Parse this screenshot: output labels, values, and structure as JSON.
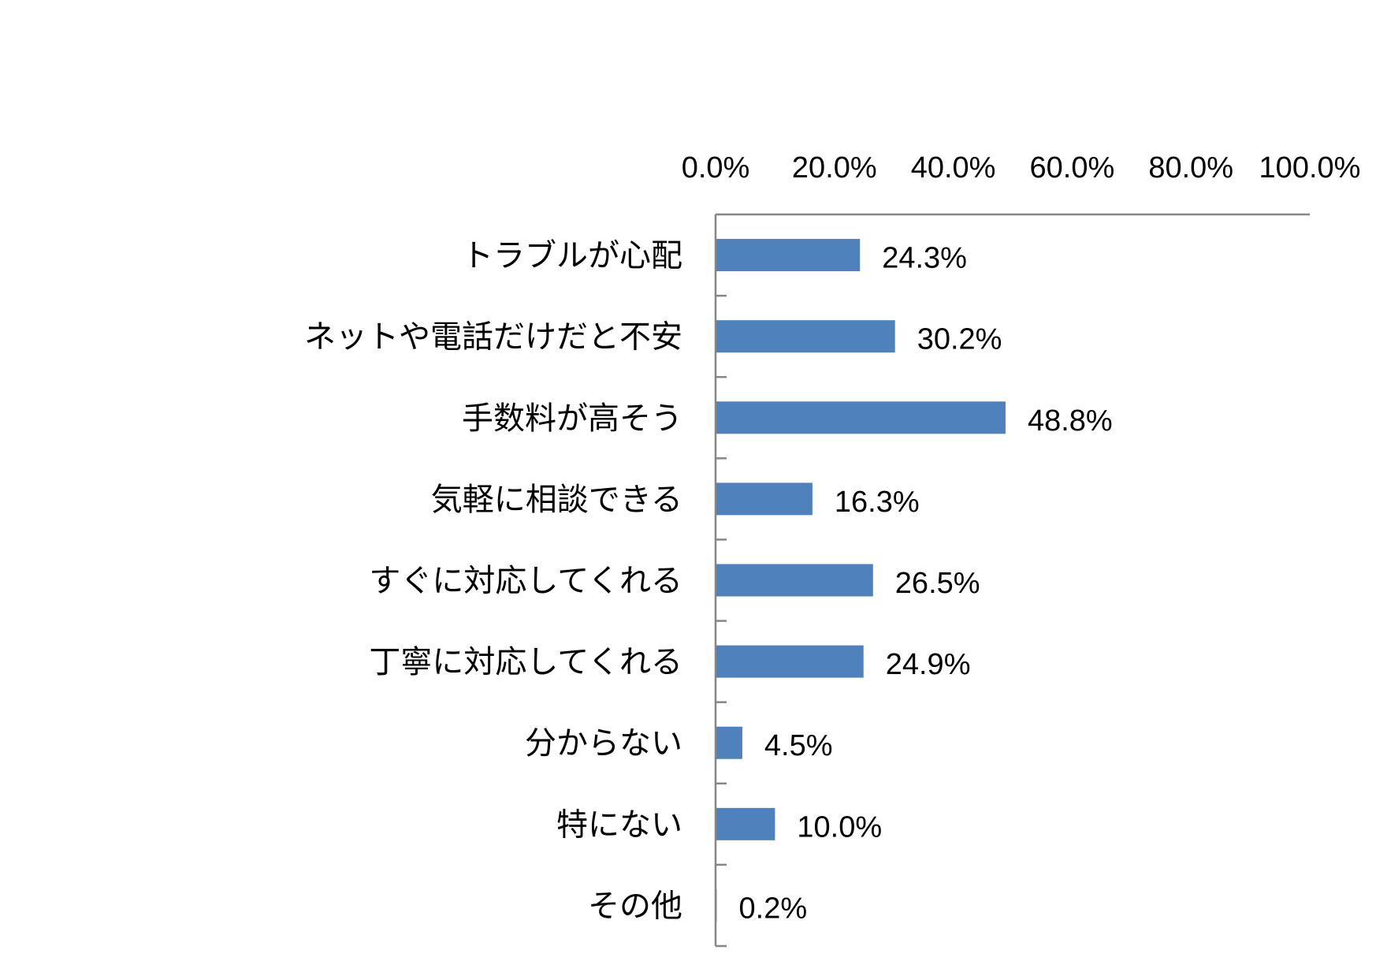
{
  "chart_data": {
    "type": "bar",
    "orientation": "horizontal",
    "categories": [
      "トラブルが心配",
      "ネットや電話だけだと不安",
      "手数料が高そう",
      "気軽に相談できる",
      "すぐに対応してくれる",
      "丁寧に対応してくれる",
      "分からない",
      "特にない",
      "その他"
    ],
    "values": [
      24.3,
      30.2,
      48.8,
      16.3,
      26.5,
      24.9,
      4.5,
      10.0,
      0.2
    ],
    "value_labels": [
      "24.3%",
      "30.2%",
      "48.8%",
      "16.3%",
      "26.5%",
      "24.9%",
      "4.5%",
      "10.0%",
      "0.2%"
    ],
    "xlim": [
      0,
      100
    ],
    "x_ticks": [
      0,
      20,
      40,
      60,
      80,
      100
    ],
    "x_tick_labels": [
      "0.0%",
      "20.0%",
      "40.0%",
      "60.0%",
      "80.0%",
      "100.0%"
    ],
    "x_axis_position": "top",
    "grid": false,
    "legend": "none",
    "title": "",
    "xlabel": "",
    "ylabel": "",
    "colors": {
      "bar": "#4f81bd",
      "axis": "#868686",
      "text": "#000000"
    }
  }
}
